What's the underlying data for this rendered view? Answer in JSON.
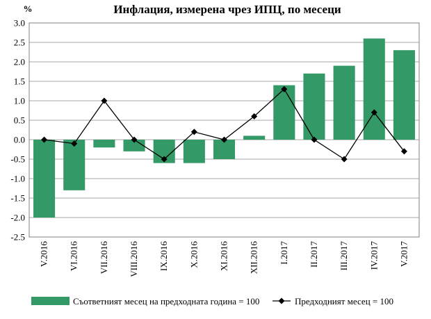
{
  "chart_data": {
    "type": "bar",
    "title": "Инфлация, измерена чрез ИПЦ, по месеци",
    "unit_label": "%",
    "categories": [
      "V.2016",
      "VI.2016",
      "VII.2016",
      "VIII.2016",
      "IX.2016",
      "X.2016",
      "XI.2016",
      "XII.2016",
      "I.2017",
      "II.2017",
      "III.2017",
      "IV.2017",
      "V.2017"
    ],
    "series": [
      {
        "name": "Съответният месец на предходната година = 100",
        "kind": "bar",
        "color": "#339966",
        "values": [
          -2.0,
          -1.3,
          -0.2,
          -0.3,
          -0.6,
          -0.6,
          -0.5,
          0.1,
          1.4,
          1.7,
          1.9,
          2.6,
          2.3
        ]
      },
      {
        "name": "Предходният месец = 100",
        "kind": "line",
        "color": "#000000",
        "marker": "diamond",
        "values": [
          0.0,
          -0.1,
          1.0,
          0.0,
          -0.5,
          0.2,
          0.0,
          0.6,
          1.3,
          0.0,
          -0.5,
          0.7,
          -0.3
        ]
      }
    ],
    "ylim": [
      -2.5,
      3.0
    ],
    "yticks": [
      "3.0",
      "2.5",
      "2.0",
      "1.5",
      "1.0",
      "0.5",
      "0.0",
      "-0.5",
      "-1.0",
      "-1.5",
      "-2.0",
      "-2.5"
    ],
    "ytick_values": [
      3.0,
      2.5,
      2.0,
      1.5,
      1.0,
      0.5,
      0.0,
      -0.5,
      -1.0,
      -1.5,
      -2.0,
      -2.5
    ],
    "grid": true,
    "legend_position": "bottom"
  }
}
